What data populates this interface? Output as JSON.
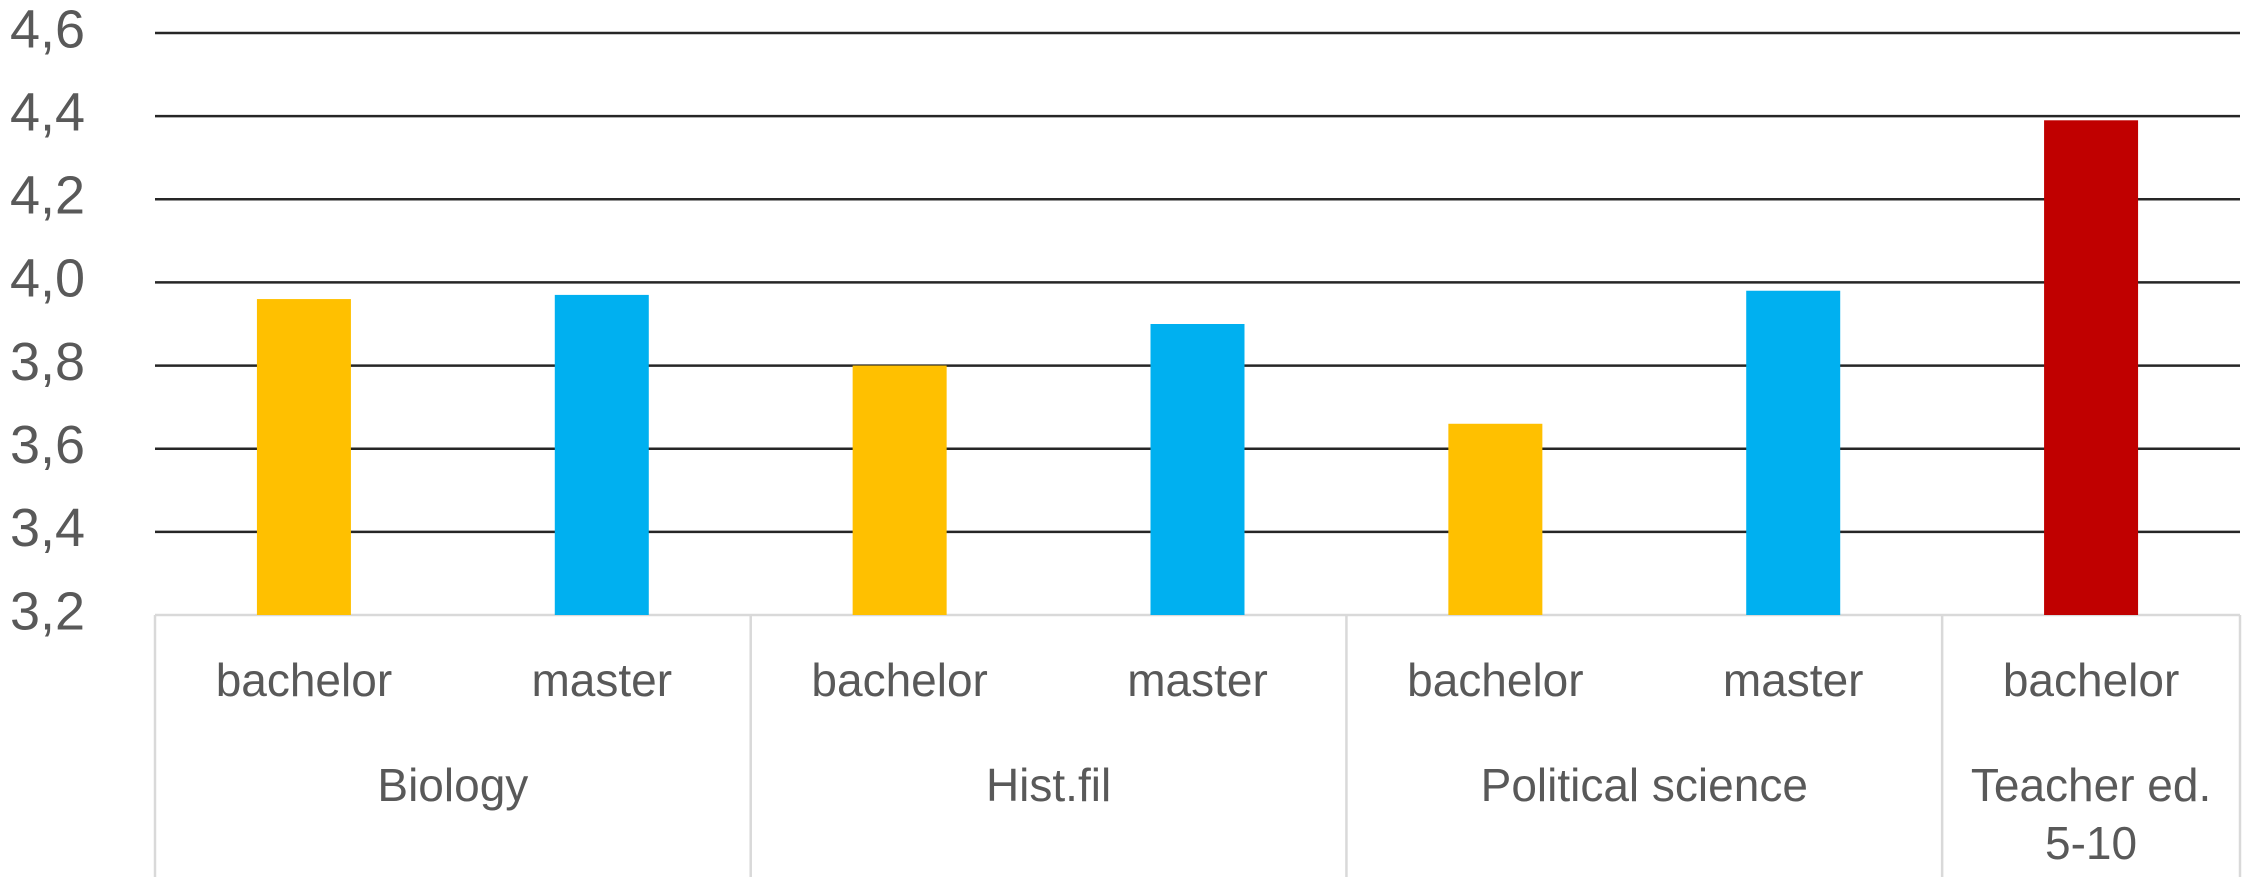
{
  "chart_data": {
    "type": "bar",
    "groups": [
      {
        "name": "Biology",
        "categories": [
          "bachelor",
          "master"
        ],
        "values": [
          3.96,
          3.97
        ],
        "colors": [
          "#FFC000",
          "#00B0F0"
        ]
      },
      {
        "name": "Hist.fil",
        "categories": [
          "bachelor",
          "master"
        ],
        "values": [
          3.8,
          3.9
        ],
        "colors": [
          "#FFC000",
          "#00B0F0"
        ]
      },
      {
        "name": "Political science",
        "categories": [
          "bachelor",
          "master"
        ],
        "values": [
          3.66,
          3.98
        ],
        "colors": [
          "#FFC000",
          "#00B0F0"
        ]
      },
      {
        "name": "Teacher ed. 5-10",
        "categories": [
          "bachelor"
        ],
        "values": [
          4.39
        ],
        "colors": [
          "#C00000"
        ]
      }
    ],
    "ylim": [
      3.2,
      4.6
    ],
    "yticks": [
      {
        "value": 3.2,
        "label": "3,2"
      },
      {
        "value": 3.4,
        "label": "3,4"
      },
      {
        "value": 3.6,
        "label": "3,6"
      },
      {
        "value": 3.8,
        "label": "3,8"
      },
      {
        "value": 4.0,
        "label": "4,0"
      },
      {
        "value": 4.2,
        "label": "4,2"
      },
      {
        "value": 4.4,
        "label": "4,4"
      },
      {
        "value": 4.6,
        "label": "4,6"
      }
    ],
    "grid": true
  }
}
